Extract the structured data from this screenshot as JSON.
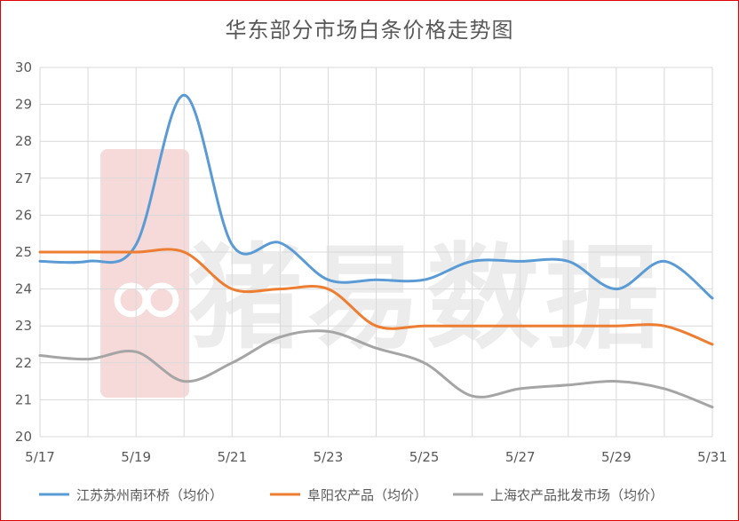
{
  "chart_data": {
    "type": "line",
    "title": "华东部分市场白条价格走势图",
    "watermark": "猪易数据",
    "x": [
      "5/17",
      "5/18",
      "5/19",
      "5/20",
      "5/21",
      "5/22",
      "5/23",
      "5/24",
      "5/25",
      "5/26",
      "5/27",
      "5/28",
      "5/29",
      "5/30",
      "5/31"
    ],
    "x_tick_labels": [
      "5/17",
      "5/19",
      "5/21",
      "5/23",
      "5/25",
      "5/27",
      "5/29",
      "5/31"
    ],
    "ylim": [
      20,
      30
    ],
    "y_ticks": [
      20,
      21,
      22,
      23,
      24,
      25,
      26,
      27,
      28,
      29,
      30
    ],
    "grid": true,
    "legend_position": "bottom",
    "series": [
      {
        "name": "江苏苏州南环桥（均价）",
        "color": "#5b9bd5",
        "values": [
          24.75,
          24.75,
          25.2,
          29.25,
          25.2,
          25.25,
          24.25,
          24.25,
          24.25,
          24.75,
          24.75,
          24.75,
          24.0,
          24.75,
          23.75
        ]
      },
      {
        "name": "阜阳农产品（均价）",
        "color": "#ed7d31",
        "values": [
          25.0,
          25.0,
          25.0,
          25.0,
          24.0,
          24.0,
          24.0,
          23.0,
          23.0,
          23.0,
          23.0,
          23.0,
          23.0,
          23.0,
          22.5
        ]
      },
      {
        "name": "上海农产品批发市场（均价）",
        "color": "#a5a5a5",
        "values": [
          22.2,
          22.1,
          22.3,
          21.5,
          22.0,
          22.7,
          22.85,
          22.4,
          22.0,
          21.1,
          21.3,
          21.4,
          21.5,
          21.3,
          20.8
        ]
      }
    ]
  }
}
